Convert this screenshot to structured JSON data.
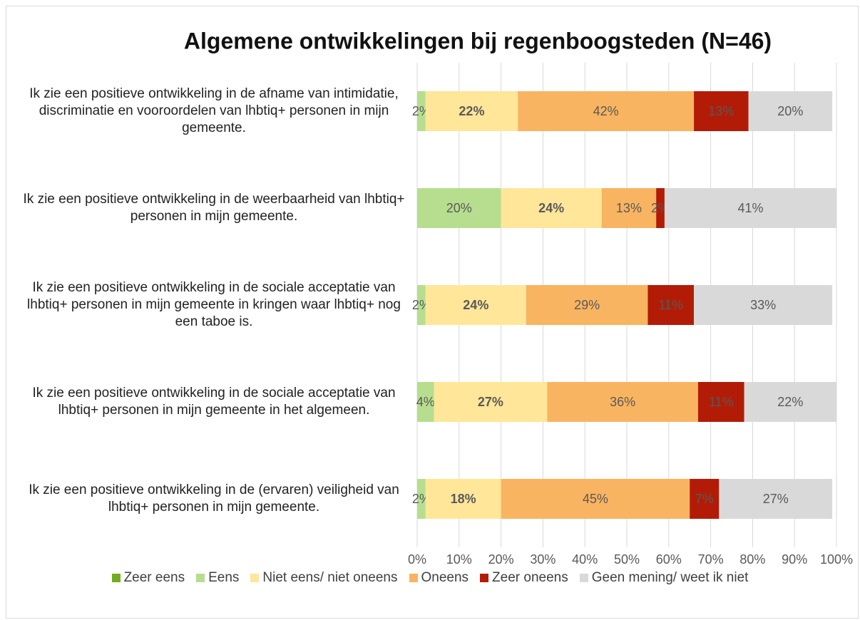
{
  "chart_data": {
    "type": "stacked_barh",
    "title": "Algemene ontwikkelingen bij regenboogsteden (N=46)",
    "categories": [
      "Ik zie een positieve ontwikkeling in de afname van intimidatie, discriminatie en vooroordelen van lhbtiq+ personen in mijn gemeente.",
      "Ik zie een positieve ontwikkeling in de weerbaarheid van lhbtiq+ personen in mijn gemeente.",
      "Ik zie een positieve ontwikkeling in de sociale acceptatie van lhbtiq+ personen in mijn gemeente in kringen waar lhbtiq+ nog een taboe is.",
      "Ik zie een positieve ontwikkeling in de sociale acceptatie van lhbtiq+ personen in mijn gemeente in het algemeen.",
      "Ik zie een positieve ontwikkeling in de (ervaren) veiligheid van lhbtiq+ personen in mijn gemeente."
    ],
    "series": [
      {
        "name": "Zeer eens",
        "color": "#70ad20",
        "values": [
          0,
          0,
          0,
          0,
          0
        ]
      },
      {
        "name": "Eens",
        "color": "#b6de8e",
        "values": [
          2,
          20,
          2,
          4,
          2
        ],
        "value_labels": [
          "2%",
          "20%",
          "2%",
          "4%",
          "2%"
        ]
      },
      {
        "name": "Niet eens/ niet oneens",
        "color": "#ffe699",
        "values": [
          22,
          24,
          24,
          27,
          18
        ],
        "value_labels": [
          "22%",
          "24%",
          "24%",
          "27%",
          "18%"
        ],
        "bold_labels": true
      },
      {
        "name": "Oneens",
        "color": "#f9b461",
        "values": [
          42,
          13,
          29,
          36,
          45
        ],
        "value_labels": [
          "42%",
          "13%",
          "29%",
          "36%",
          "45%"
        ]
      },
      {
        "name": "Zeer oneens",
        "color": "#b21c06",
        "values": [
          13,
          2,
          11,
          11,
          7
        ],
        "value_labels": [
          "13%",
          "2%",
          "11%",
          "11%",
          "7%"
        ]
      },
      {
        "name": "Geen mening/ weet ik niet",
        "color": "#d9d9d9",
        "values": [
          20,
          41,
          33,
          22,
          27
        ],
        "value_labels": [
          "20%",
          "41%",
          "33%",
          "22%",
          "27%"
        ]
      }
    ],
    "xlim": [
      0,
      100
    ],
    "xticks": [
      {
        "value": 0,
        "label": "0%"
      },
      {
        "value": 10,
        "label": "10%"
      },
      {
        "value": 20,
        "label": "20%"
      },
      {
        "value": 30,
        "label": "30%"
      },
      {
        "value": 40,
        "label": "40%"
      },
      {
        "value": 50,
        "label": "50%"
      },
      {
        "value": 60,
        "label": "60%"
      },
      {
        "value": 70,
        "label": "70%"
      },
      {
        "value": 80,
        "label": "80%"
      },
      {
        "value": 90,
        "label": "90%"
      },
      {
        "value": 100,
        "label": "100%"
      }
    ],
    "grid": true
  }
}
